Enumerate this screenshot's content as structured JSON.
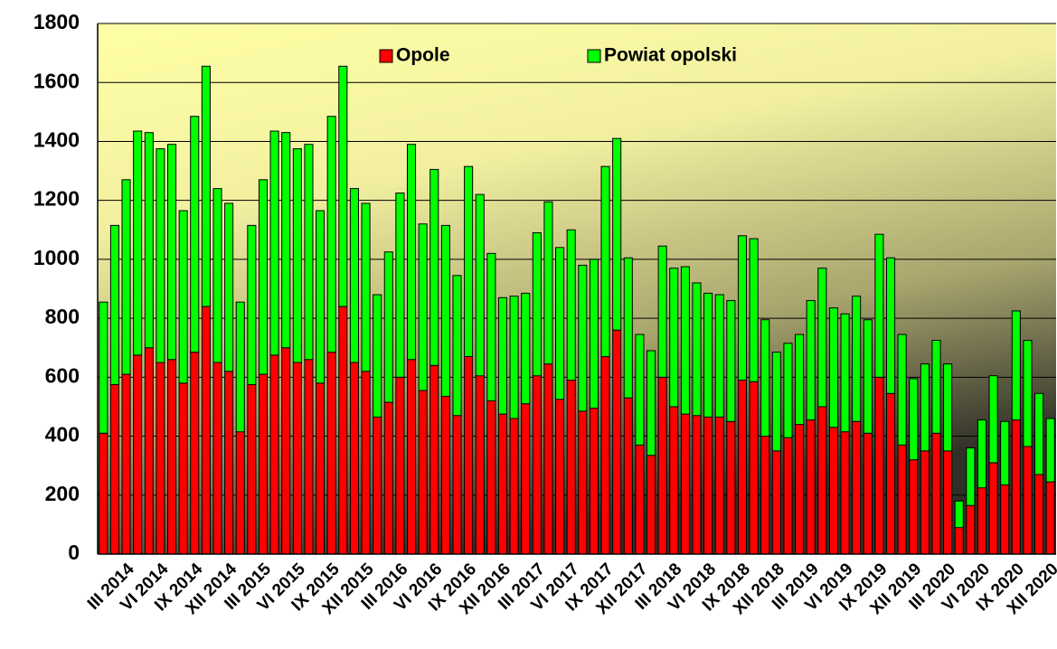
{
  "chart_data": {
    "type": "stacked_bar",
    "categories": [
      null,
      null,
      "III 2014",
      null,
      null,
      "VI 2014",
      null,
      null,
      "IX 2014",
      null,
      null,
      "XII 2014",
      null,
      null,
      "III 2015",
      null,
      null,
      "VI 2015",
      null,
      null,
      "IX 2015",
      null,
      null,
      "XII 2015",
      null,
      null,
      "III 2016",
      null,
      null,
      "VI 2016",
      null,
      null,
      "IX 2016",
      null,
      null,
      "XII 2016",
      null,
      null,
      "III 2017",
      null,
      null,
      "VI 2017",
      null,
      null,
      "IX 2017",
      null,
      null,
      "XII 2017",
      null,
      null,
      "III 2018",
      null,
      null,
      "VI 2018",
      null,
      null,
      "IX 2018",
      null,
      null,
      "XII 2018",
      null,
      null,
      "III 2019",
      null,
      null,
      "VI 2019",
      null,
      null,
      "IX 2019",
      null,
      null,
      "XII 2019",
      null,
      null,
      "III 2020",
      null,
      null,
      "VI 2020",
      null,
      null,
      "IX 2020",
      null,
      null,
      "XII 2020"
    ],
    "series": [
      {
        "name": "Opole",
        "color": "#ff0000",
        "values": [
          410,
          575,
          610,
          675,
          700,
          650,
          660,
          580,
          685,
          840,
          650,
          620,
          415,
          575,
          610,
          675,
          700,
          650,
          660,
          580,
          685,
          840,
          650,
          620,
          465,
          515,
          600,
          660,
          555,
          640,
          535,
          470,
          670,
          605,
          520,
          475,
          460,
          510,
          605,
          645,
          525,
          590,
          485,
          495,
          670,
          760,
          530,
          370,
          335,
          600,
          500,
          475,
          470,
          465,
          465,
          450,
          590,
          585,
          400,
          350,
          395,
          440,
          455,
          500,
          430,
          415,
          450,
          410,
          600,
          545,
          370,
          320,
          350,
          410,
          350,
          90,
          165,
          225,
          310,
          235,
          455,
          365,
          270,
          245
        ]
      },
      {
        "name": "Powiat opolski",
        "color": "#00ff00",
        "values": [
          445,
          540,
          660,
          760,
          730,
          725,
          730,
          585,
          800,
          815,
          590,
          570,
          440,
          540,
          660,
          760,
          730,
          725,
          730,
          585,
          800,
          815,
          590,
          570,
          415,
          510,
          625,
          730,
          565,
          665,
          580,
          475,
          645,
          615,
          500,
          395,
          415,
          375,
          485,
          550,
          515,
          510,
          495,
          505,
          645,
          650,
          475,
          375,
          355,
          445,
          470,
          500,
          450,
          420,
          415,
          410,
          490,
          485,
          395,
          335,
          320,
          305,
          405,
          470,
          405,
          400,
          425,
          385,
          485,
          460,
          375,
          275,
          295,
          315,
          295,
          90,
          195,
          230,
          295,
          215,
          370,
          360,
          275,
          215
        ]
      }
    ],
    "ylim": [
      0,
      1800
    ],
    "yticks": [
      0,
      200,
      400,
      600,
      800,
      1000,
      1200,
      1400,
      1600,
      1800
    ],
    "grid": true,
    "legend": "top"
  }
}
